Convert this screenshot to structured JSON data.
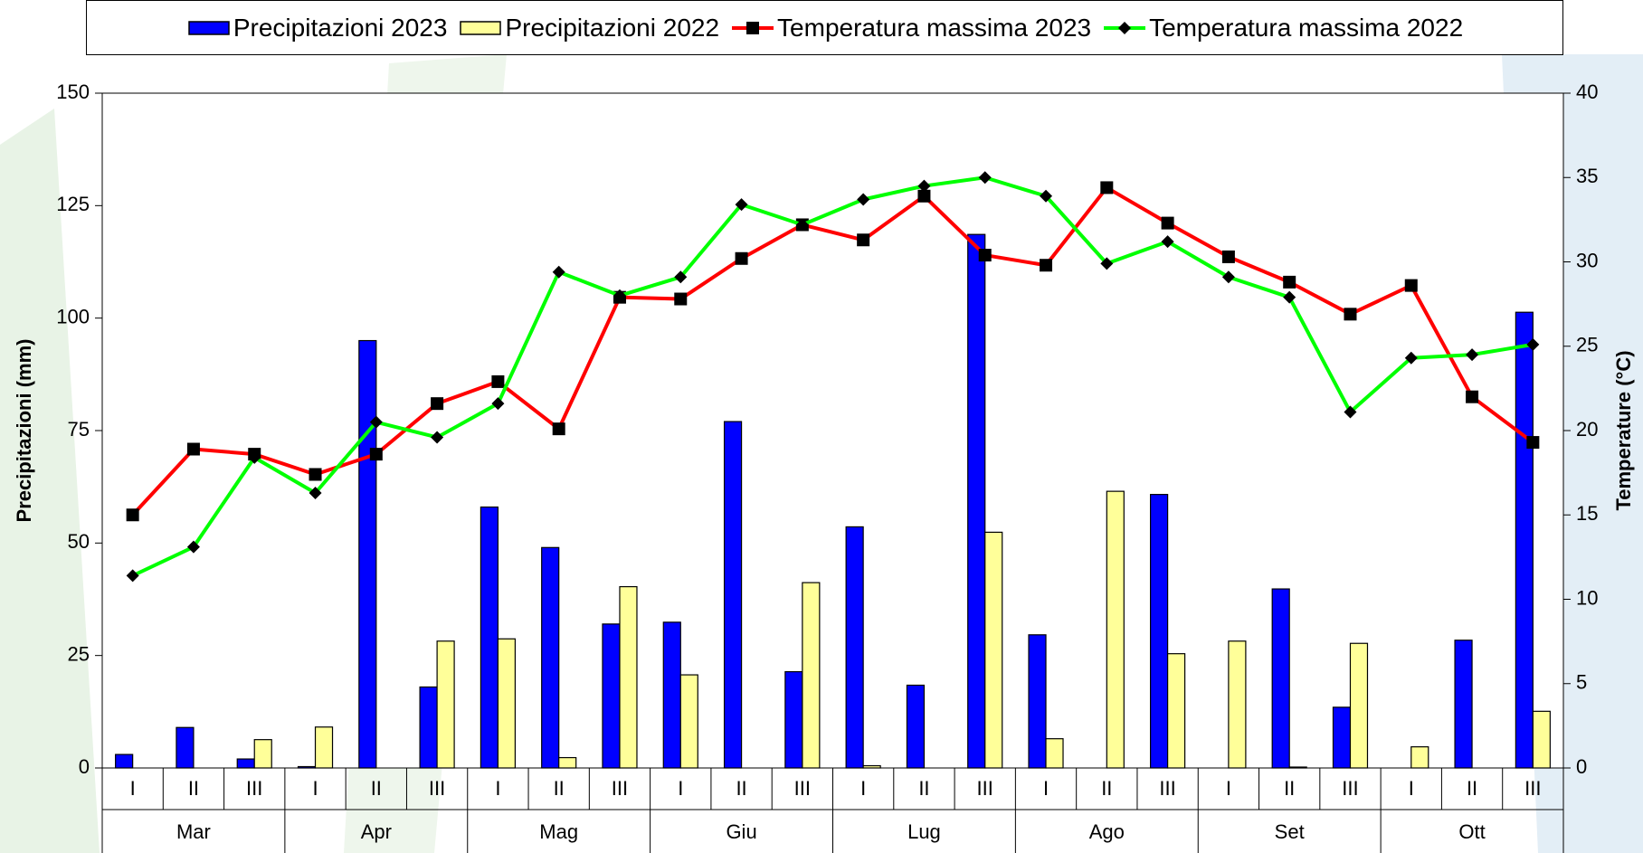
{
  "chart_data": {
    "type": "bar-line",
    "ylabel": "Precipitazioni (mm)",
    "y2label": "Temperature (°C)",
    "categories": [
      "I",
      "II",
      "III",
      "I",
      "II",
      "III",
      "I",
      "II",
      "III",
      "I",
      "II",
      "III",
      "I",
      "II",
      "III",
      "I",
      "II",
      "III",
      "I",
      "II",
      "III",
      "I",
      "II",
      "III"
    ],
    "groups": [
      "Mar",
      "Apr",
      "Mag",
      "Giu",
      "Lug",
      "Ago",
      "Set",
      "Ott"
    ],
    "ylim": [
      0,
      150
    ],
    "yticks": [
      0,
      25,
      50,
      75,
      100,
      125,
      150
    ],
    "y2lim": [
      0,
      40
    ],
    "y2ticks": [
      0,
      5,
      10,
      15,
      20,
      25,
      30,
      35,
      40
    ],
    "series": [
      {
        "name": "Precipitazioni 2023",
        "type": "bar",
        "color": "#0000ff",
        "values": [
          3,
          9,
          2,
          0.3,
          95,
          18,
          58,
          49,
          32,
          32.4,
          77,
          21.4,
          53.6,
          18.4,
          118.6,
          29.6,
          0,
          60.8,
          0,
          39.8,
          13.5,
          0,
          28.4,
          101.3
        ]
      },
      {
        "name": "Precipitazioni 2022",
        "type": "bar",
        "color": "#ffff99",
        "values": [
          0,
          0,
          6.3,
          9.1,
          0,
          28.2,
          28.7,
          2.3,
          40.3,
          20.7,
          0,
          41.2,
          0.5,
          0,
          52.4,
          6.5,
          61.5,
          25.4,
          28.2,
          0.2,
          27.7,
          4.7,
          0,
          12.6
        ]
      },
      {
        "name": "Temperatura massima 2023",
        "type": "line",
        "axis": "y2",
        "color": "#ff0000",
        "marker": "square",
        "values": [
          15.0,
          18.9,
          18.6,
          17.4,
          18.6,
          21.6,
          22.9,
          20.1,
          27.9,
          27.8,
          30.2,
          32.2,
          31.3,
          33.9,
          30.4,
          29.8,
          34.4,
          32.3,
          30.3,
          28.8,
          26.9,
          28.6,
          22.0,
          19.3
        ]
      },
      {
        "name": "Temperatura massima 2022",
        "type": "line",
        "axis": "y2",
        "color": "#00ff00",
        "marker": "diamond",
        "values": [
          11.4,
          13.1,
          18.4,
          16.3,
          20.5,
          19.6,
          21.6,
          29.4,
          28.0,
          29.1,
          33.4,
          32.2,
          33.7,
          34.5,
          35.0,
          33.9,
          29.9,
          31.2,
          29.1,
          27.9,
          21.1,
          24.3,
          24.5,
          25.1
        ]
      }
    ]
  }
}
